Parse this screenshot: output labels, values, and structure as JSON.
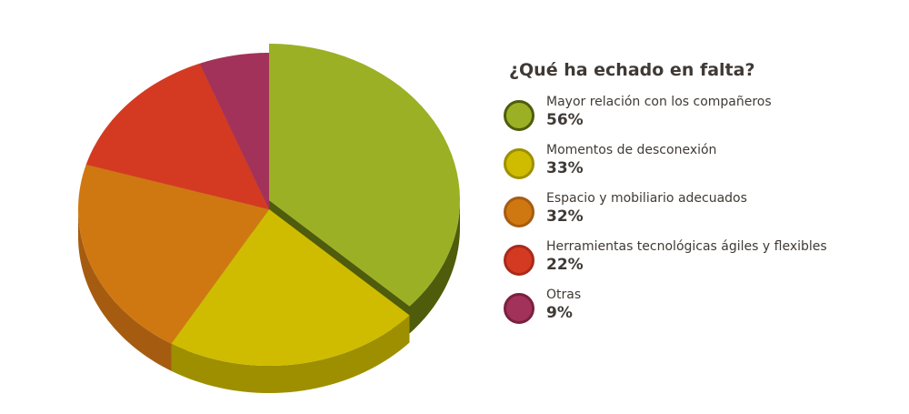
{
  "chart_data": {
    "type": "pie",
    "style": "3d",
    "title": "¿Qué ha echado en falta?",
    "legend_position": "right",
    "slices": [
      {
        "label": "Mayor relación con los compañeros",
        "value": 56,
        "display": "56%",
        "color": "#9BB024",
        "side": "#4E5C0C"
      },
      {
        "label": "Momentos de desconexión",
        "value": 33,
        "display": "33%",
        "color": "#CFBC00",
        "side": "#9E8F00"
      },
      {
        "label": "Espacio y mobiliario adecuados",
        "value": 32,
        "display": "32%",
        "color": "#CF7812",
        "side": "#A65C10"
      },
      {
        "label": "Herramientas tecnológicas ágiles y flexibles",
        "value": 22,
        "display": "22%",
        "color": "#D43A22",
        "side": "#A82A1A"
      },
      {
        "label": "Otras",
        "value": 9,
        "display": "9%",
        "color": "#A23259",
        "side": "#7A2040"
      }
    ]
  }
}
